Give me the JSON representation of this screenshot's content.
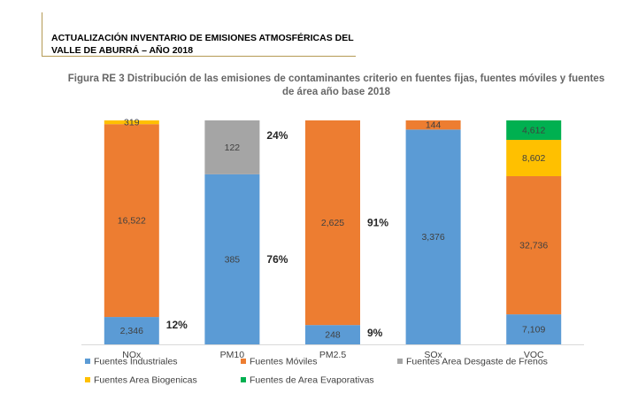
{
  "header": {
    "line1": "ACTUALIZACIÓN INVENTARIO DE EMISIONES ATMOSFÉRICAS DEL",
    "line2": "VALLE DE ABURRÁ – AÑO 2018",
    "rule_color": "#b59a55"
  },
  "chart_data": {
    "type": "bar",
    "stacked": "percent",
    "title_line1": "Figura RE 3 Distribución de las emisiones de contaminantes criterio en fuentes fijas, fuentes móviles y fuentes",
    "title_line2": "de área año base 2018",
    "categories": [
      "NOx",
      "PM10",
      "PM2.5",
      "SOx",
      "VOC"
    ],
    "series": [
      {
        "name": "Fuentes Industriales",
        "color": "#5b9bd5",
        "values": [
          2346,
          385,
          248,
          3376,
          7109
        ],
        "labels": [
          "2,346",
          "385",
          "248",
          "3,376",
          "7,109"
        ]
      },
      {
        "name": "Fuentes Móviles",
        "color": "#ed7d31",
        "values": [
          16522,
          0,
          2625,
          144,
          32736
        ],
        "labels": [
          "16,522",
          "",
          "2,625",
          "144",
          "32,736"
        ]
      },
      {
        "name": "Fuentes Area Desgaste de Frenos",
        "color": "#a5a5a5",
        "values": [
          0,
          122,
          0,
          0,
          0
        ],
        "labels": [
          "",
          "122",
          "",
          "",
          ""
        ]
      },
      {
        "name": "Fuentes Area Biogenicas",
        "color": "#ffc000",
        "values": [
          319,
          0,
          0,
          0,
          8602
        ],
        "labels": [
          "319",
          "",
          "",
          "",
          "8,602"
        ]
      },
      {
        "name": "Fuentes de Area Evaporativas",
        "color": "#00b050",
        "values": [
          0,
          0,
          0,
          0,
          4612
        ],
        "labels": [
          "",
          "",
          "",
          "",
          "4,612"
        ]
      }
    ],
    "annotations": [
      {
        "category": "NOx",
        "series": 0,
        "text": "12%"
      },
      {
        "category": "PM10",
        "series": 0,
        "text": "76%"
      },
      {
        "category": "PM10",
        "series": 2,
        "text": "24%"
      },
      {
        "category": "PM2.5",
        "series": 0,
        "text": "9%"
      },
      {
        "category": "PM2.5",
        "series": 1,
        "text": "91%"
      }
    ],
    "legend_position": "bottom",
    "ylim": [
      0,
      100
    ]
  }
}
